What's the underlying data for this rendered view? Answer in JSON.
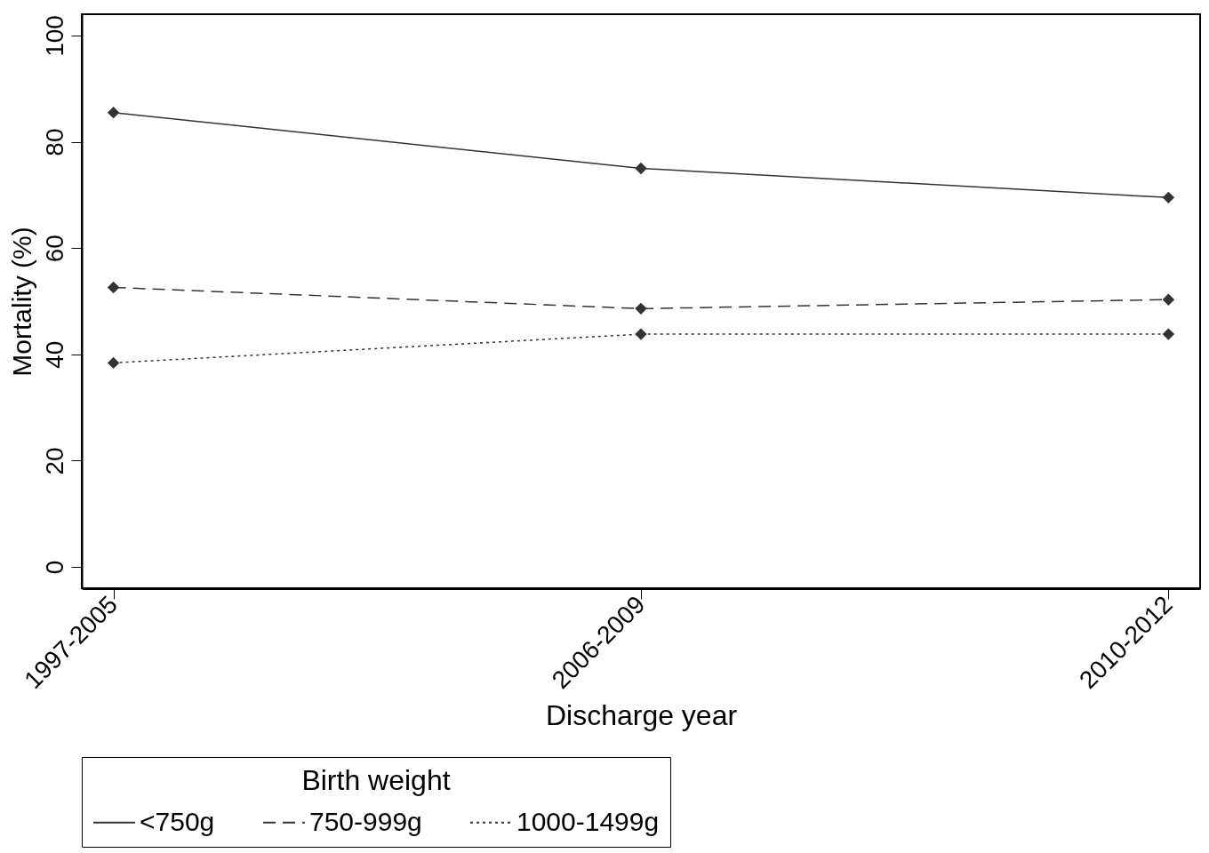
{
  "chart_data": {
    "type": "line",
    "xlabel": "Discharge year",
    "ylabel": "Mortality (%)",
    "legend_title": "Birth weight",
    "categories": [
      "1997-2005",
      "2006-2009",
      "2010-2012"
    ],
    "series": [
      {
        "name": "<750g",
        "color": "#333333",
        "line_style": "solid",
        "values": [
          85.5,
          75,
          69.5
        ]
      },
      {
        "name": "750-999g",
        "color": "#333333",
        "line_style": "dashed",
        "values": [
          52.6,
          48.6,
          50.3
        ]
      },
      {
        "name": "1000-1499g",
        "color": "#333333",
        "line_style": "dotted",
        "values": [
          38.4,
          43.8,
          43.8
        ]
      }
    ],
    "ylim": [
      -4,
      104
    ],
    "yticks": [
      0,
      20,
      40,
      60,
      80,
      100
    ],
    "grid": false,
    "legend": "bottom",
    "marker": "diamond"
  }
}
